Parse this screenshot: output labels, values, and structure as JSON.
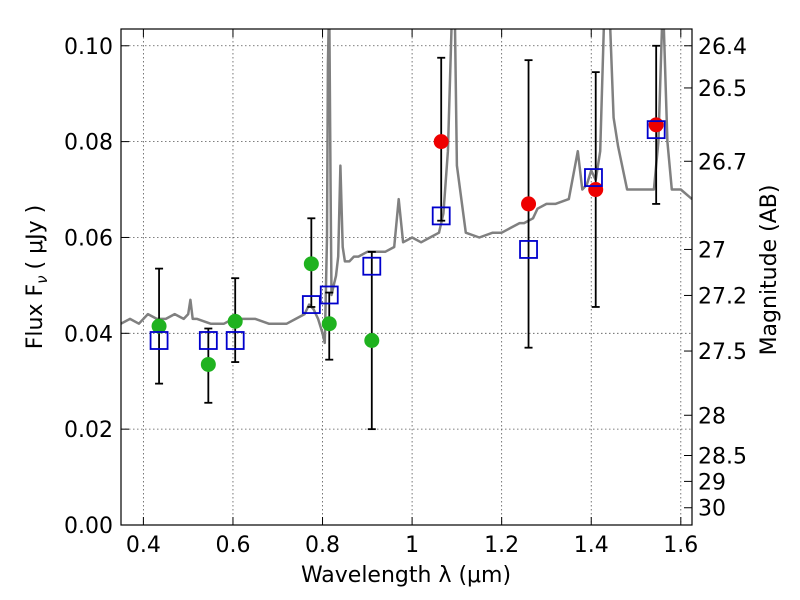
{
  "chart_data": {
    "type": "scatter",
    "title": "",
    "xlabel": "Wavelength  λ (μm)",
    "ylabel": "Flux  F",
    "ylabel_subscript": "ν",
    "ylabel_units": "( μJy )",
    "y2label": "Magnitude (AB)",
    "xlim": [
      0.35,
      1.625
    ],
    "ylim": [
      0.0,
      0.1035
    ],
    "grid": true,
    "x_ticks": [
      0.4,
      0.6,
      0.8,
      1.0,
      1.2,
      1.4,
      1.6
    ],
    "x_tick_labels": [
      "0.4",
      "0.6",
      "0.8",
      "1",
      "1.2",
      "1.4",
      "1.6"
    ],
    "y_ticks": [
      0.0,
      0.02,
      0.04,
      0.06,
      0.08,
      0.1
    ],
    "y_tick_labels": [
      "0.00",
      "0.02",
      "0.04",
      "0.06",
      "0.08",
      "0.10"
    ],
    "y2_ticks": [
      {
        "label": "26.4",
        "flux": 0.1
      },
      {
        "label": "26.5",
        "flux": 0.0912
      },
      {
        "label": "26.7",
        "flux": 0.0759
      },
      {
        "label": "27",
        "flux": 0.0575
      },
      {
        "label": "27.2",
        "flux": 0.0479
      },
      {
        "label": "27.5",
        "flux": 0.0363
      },
      {
        "label": "28",
        "flux": 0.0229
      },
      {
        "label": "28.5",
        "flux": 0.0145
      },
      {
        "label": "29",
        "flux": 0.0091
      },
      {
        "label": "30",
        "flux": 0.0036
      }
    ],
    "series": [
      {
        "name": "model spectrum",
        "kind": "line",
        "color": "#808080",
        "x": [
          0.35,
          0.37,
          0.39,
          0.41,
          0.43,
          0.45,
          0.47,
          0.49,
          0.5,
          0.505,
          0.51,
          0.515,
          0.52,
          0.55,
          0.58,
          0.6,
          0.62,
          0.65,
          0.68,
          0.7,
          0.72,
          0.74,
          0.76,
          0.77,
          0.78,
          0.79,
          0.8,
          0.805,
          0.81,
          0.812,
          0.815,
          0.818,
          0.82,
          0.825,
          0.83,
          0.835,
          0.84,
          0.845,
          0.85,
          0.86,
          0.87,
          0.88,
          0.9,
          0.92,
          0.94,
          0.96,
          0.97,
          0.98,
          1.0,
          1.02,
          1.04,
          1.06,
          1.07,
          1.08,
          1.09,
          1.095,
          1.1,
          1.12,
          1.15,
          1.18,
          1.2,
          1.22,
          1.24,
          1.25,
          1.27,
          1.28,
          1.3,
          1.32,
          1.35,
          1.37,
          1.38,
          1.39,
          1.4,
          1.41,
          1.42,
          1.43,
          1.44,
          1.45,
          1.46,
          1.48,
          1.5,
          1.52,
          1.54,
          1.55,
          1.56,
          1.57,
          1.58,
          1.6,
          1.625
        ],
        "y": [
          0.042,
          0.043,
          0.042,
          0.044,
          0.043,
          0.043,
          0.044,
          0.043,
          0.044,
          0.047,
          0.043,
          0.043,
          0.043,
          0.042,
          0.042,
          0.043,
          0.043,
          0.043,
          0.042,
          0.042,
          0.042,
          0.043,
          0.044,
          0.046,
          0.045,
          0.043,
          0.04,
          0.038,
          0.06,
          0.096,
          0.11,
          0.07,
          0.048,
          0.05,
          0.052,
          0.056,
          0.075,
          0.058,
          0.055,
          0.055,
          0.056,
          0.056,
          0.057,
          0.057,
          0.057,
          0.058,
          0.068,
          0.059,
          0.06,
          0.059,
          0.06,
          0.061,
          0.065,
          0.078,
          0.11,
          0.11,
          0.075,
          0.061,
          0.06,
          0.061,
          0.061,
          0.062,
          0.063,
          0.063,
          0.064,
          0.066,
          0.067,
          0.067,
          0.068,
          0.078,
          0.07,
          0.071,
          0.074,
          0.072,
          0.078,
          0.11,
          0.11,
          0.085,
          0.079,
          0.07,
          0.07,
          0.07,
          0.07,
          0.08,
          0.11,
          0.08,
          0.07,
          0.07,
          0.068
        ]
      },
      {
        "name": "green points",
        "kind": "points-errorbars",
        "color": "#1fb21f",
        "x": [
          0.435,
          0.545,
          0.605,
          0.775,
          0.815,
          0.91
        ],
        "y": [
          0.0415,
          0.0335,
          0.0425,
          0.0545,
          0.042,
          0.0385
        ],
        "ylow": [
          0.0295,
          0.0255,
          0.034,
          0.0455,
          0.0345,
          0.02
        ],
        "yhigh": [
          0.0535,
          0.041,
          0.0515,
          0.064,
          0.0485,
          0.057
        ]
      },
      {
        "name": "red points",
        "kind": "points-errorbars",
        "color": "#ee0000",
        "x": [
          1.065,
          1.26,
          1.41,
          1.545
        ],
        "y": [
          0.08,
          0.067,
          0.07,
          0.0835
        ],
        "ylow": [
          0.0635,
          0.037,
          0.0455,
          0.067
        ],
        "yhigh": [
          0.0975,
          0.097,
          0.0945,
          0.1
        ]
      },
      {
        "name": "blue squares",
        "kind": "open-squares",
        "color": "#0000cc",
        "x": [
          0.435,
          0.545,
          0.605,
          0.775,
          0.815,
          0.91,
          1.065,
          1.26,
          1.405,
          1.545
        ],
        "y": [
          0.0385,
          0.0385,
          0.0385,
          0.046,
          0.048,
          0.054,
          0.0645,
          0.0575,
          0.0725,
          0.0825
        ]
      }
    ]
  }
}
